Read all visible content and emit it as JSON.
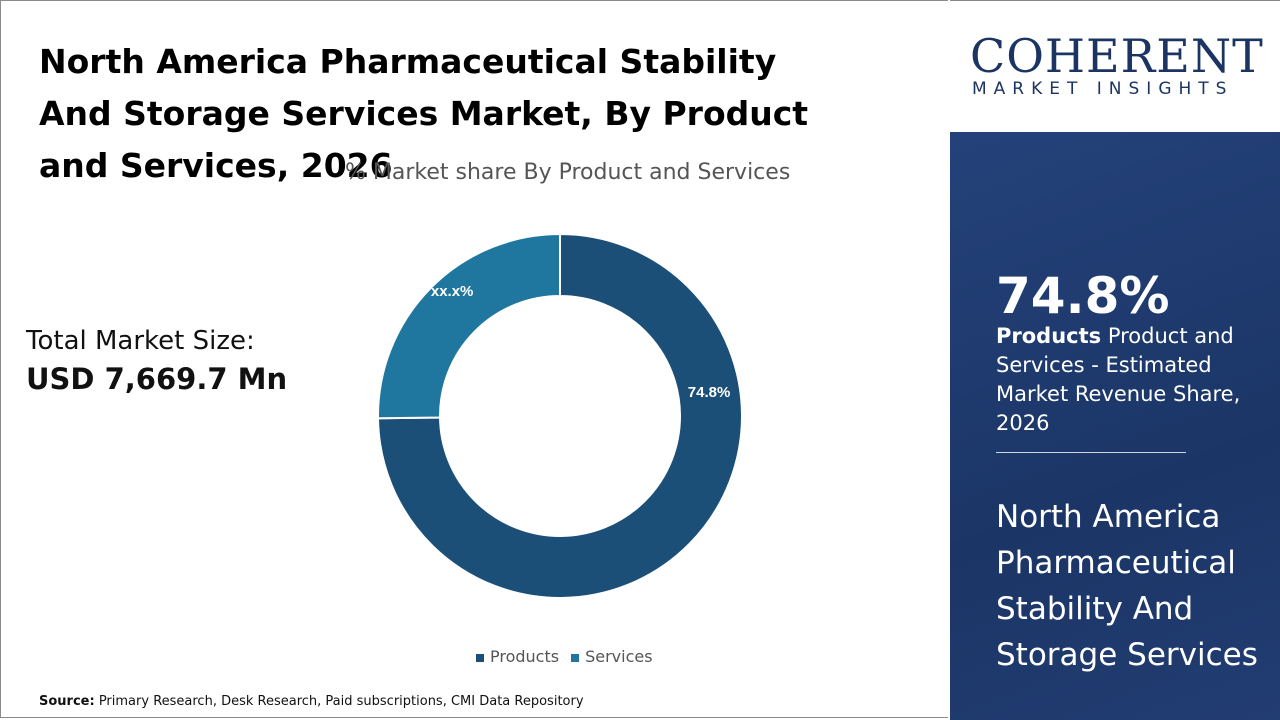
{
  "title": "North America Pharmaceutical Stability And Storage Services Market, By Product and Services, 2026",
  "total_market": {
    "label": "Total Market Size:",
    "value": "USD 7,669.7 Mn"
  },
  "source": {
    "label": "Source:",
    "text": " Primary Research, Desk Research, Paid subscriptions, CMI Data Repository"
  },
  "logo": {
    "line1": "COHERENT",
    "line2": "MARKET INSIGHTS"
  },
  "sidebar": {
    "highlight_value": "74.8%",
    "highlight_bold": "Products",
    "highlight_text": " Product and Services - Estimated Market Revenue Share, 2026",
    "market_name": "North America Pharmaceutical Stability And Storage Services"
  },
  "chart_data": {
    "type": "pie",
    "donut": true,
    "title": "% Market share By Product and Services",
    "categories": [
      "Products",
      "Services"
    ],
    "values": [
      74.8,
      25.2
    ],
    "data_labels": [
      "74.8%",
      "xx.x%"
    ],
    "colors": [
      "#1b4f78",
      "#1f77a0"
    ],
    "legend": "bottom"
  }
}
